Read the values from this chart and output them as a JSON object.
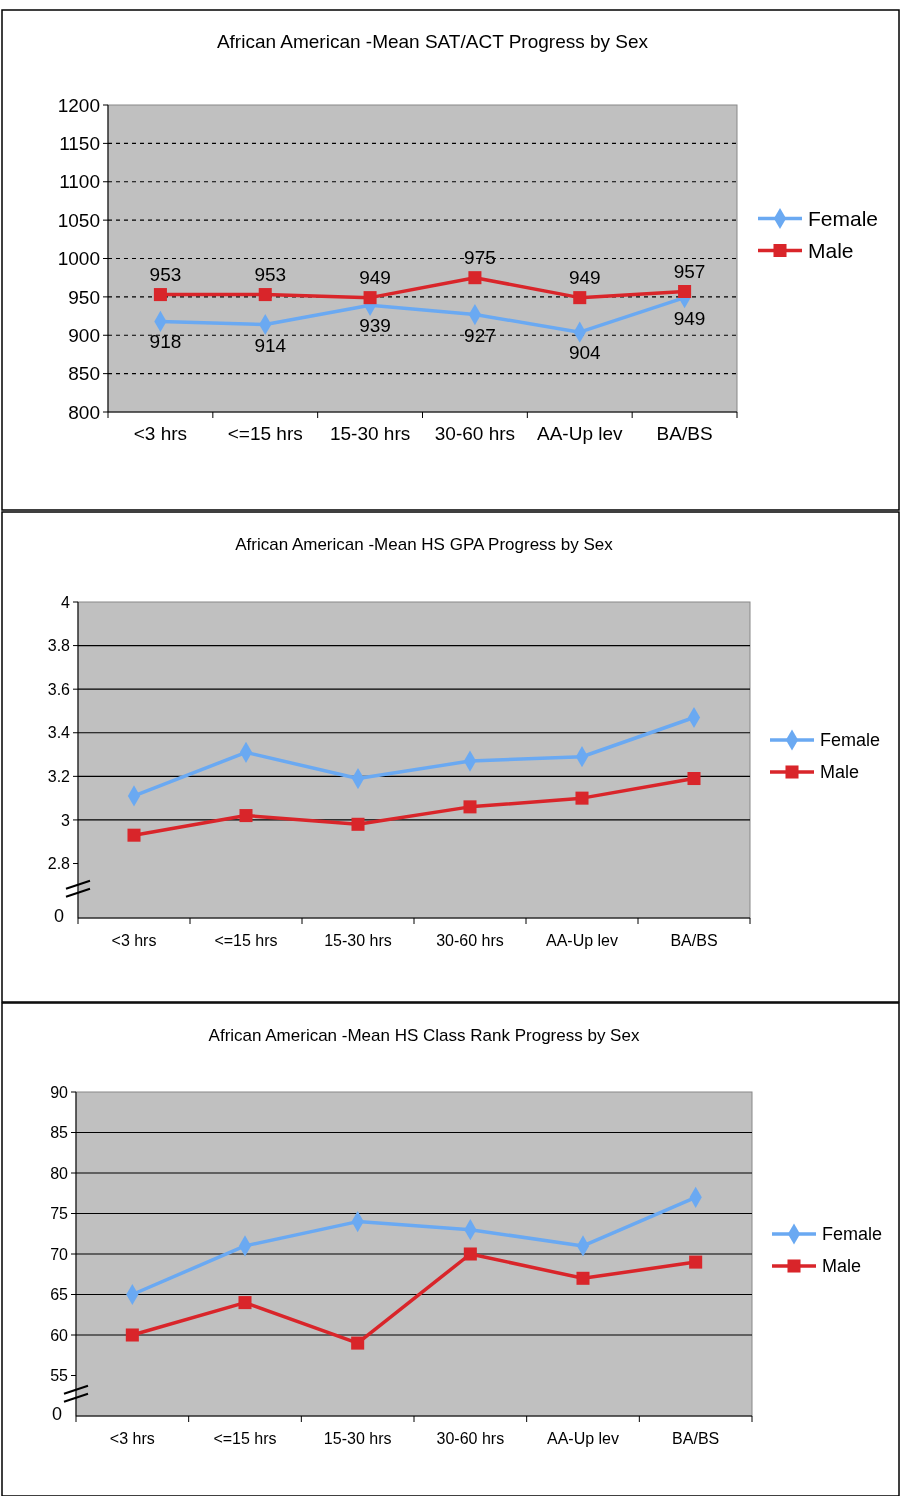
{
  "chart_data": [
    {
      "type": "line",
      "title": "African American -Mean SAT/ACT  Progress by Sex",
      "categories": [
        "<3 hrs",
        "<=15 hrs",
        "15-30 hrs",
        "30-60 hrs",
        "AA-Up lev",
        "BA/BS"
      ],
      "series": [
        {
          "name": "Female",
          "color": "#6aa9f2",
          "marker": "diamond",
          "values": [
            918,
            914,
            939,
            927,
            904,
            949
          ]
        },
        {
          "name": "Male",
          "color": "#d9252a",
          "marker": "square",
          "values": [
            953,
            953,
            949,
            975,
            949,
            957
          ]
        }
      ],
      "ylim": [
        800,
        1200
      ],
      "yticks": [
        800,
        850,
        900,
        950,
        1000,
        1050,
        1100,
        1150,
        1200
      ],
      "grid": "y",
      "legend": "right",
      "line_style": "solid",
      "data_labels": true
    },
    {
      "type": "line",
      "title": "African American -Mean HS GPA  Progress by Sex",
      "categories": [
        "<3 hrs",
        "<=15 hrs",
        "15-30 hrs",
        "30-60 hrs",
        "AA-Up lev",
        "BA/BS"
      ],
      "series": [
        {
          "name": "Female",
          "color": "#6aa9f2",
          "marker": "diamond",
          "values": [
            3.11,
            3.31,
            3.19,
            3.27,
            3.29,
            3.47
          ]
        },
        {
          "name": "Male",
          "color": "#d9252a",
          "marker": "square",
          "values": [
            2.93,
            3.02,
            2.98,
            3.06,
            3.1,
            3.19
          ]
        }
      ],
      "ylim": [
        2.55,
        4
      ],
      "annotations": [
        "0"
      ],
      "yticks": [
        2.8,
        3,
        3.2,
        3.4,
        3.6,
        3.8,
        4
      ],
      "grid": "y",
      "legend": "right",
      "line_style": "solid"
    },
    {
      "type": "line",
      "title": "African American -Mean HS Class Rank Progress by Sex",
      "categories": [
        "<3 hrs",
        "<=15 hrs",
        "15-30 hrs",
        "30-60 hrs",
        "AA-Up lev",
        "BA/BS"
      ],
      "series": [
        {
          "name": "Female",
          "color": "#6aa9f2",
          "marker": "diamond",
          "values": [
            65,
            71,
            74,
            73,
            71,
            77
          ]
        },
        {
          "name": "Male",
          "color": "#d9252a",
          "marker": "square",
          "values": [
            60,
            64,
            59,
            70,
            67,
            69
          ]
        }
      ],
      "ylim": [
        50,
        90
      ],
      "annotations": [
        "0"
      ],
      "yticks": [
        55,
        60,
        65,
        70,
        75,
        80,
        85,
        90
      ],
      "grid": "y",
      "legend": "right",
      "line_style": "solid"
    }
  ]
}
